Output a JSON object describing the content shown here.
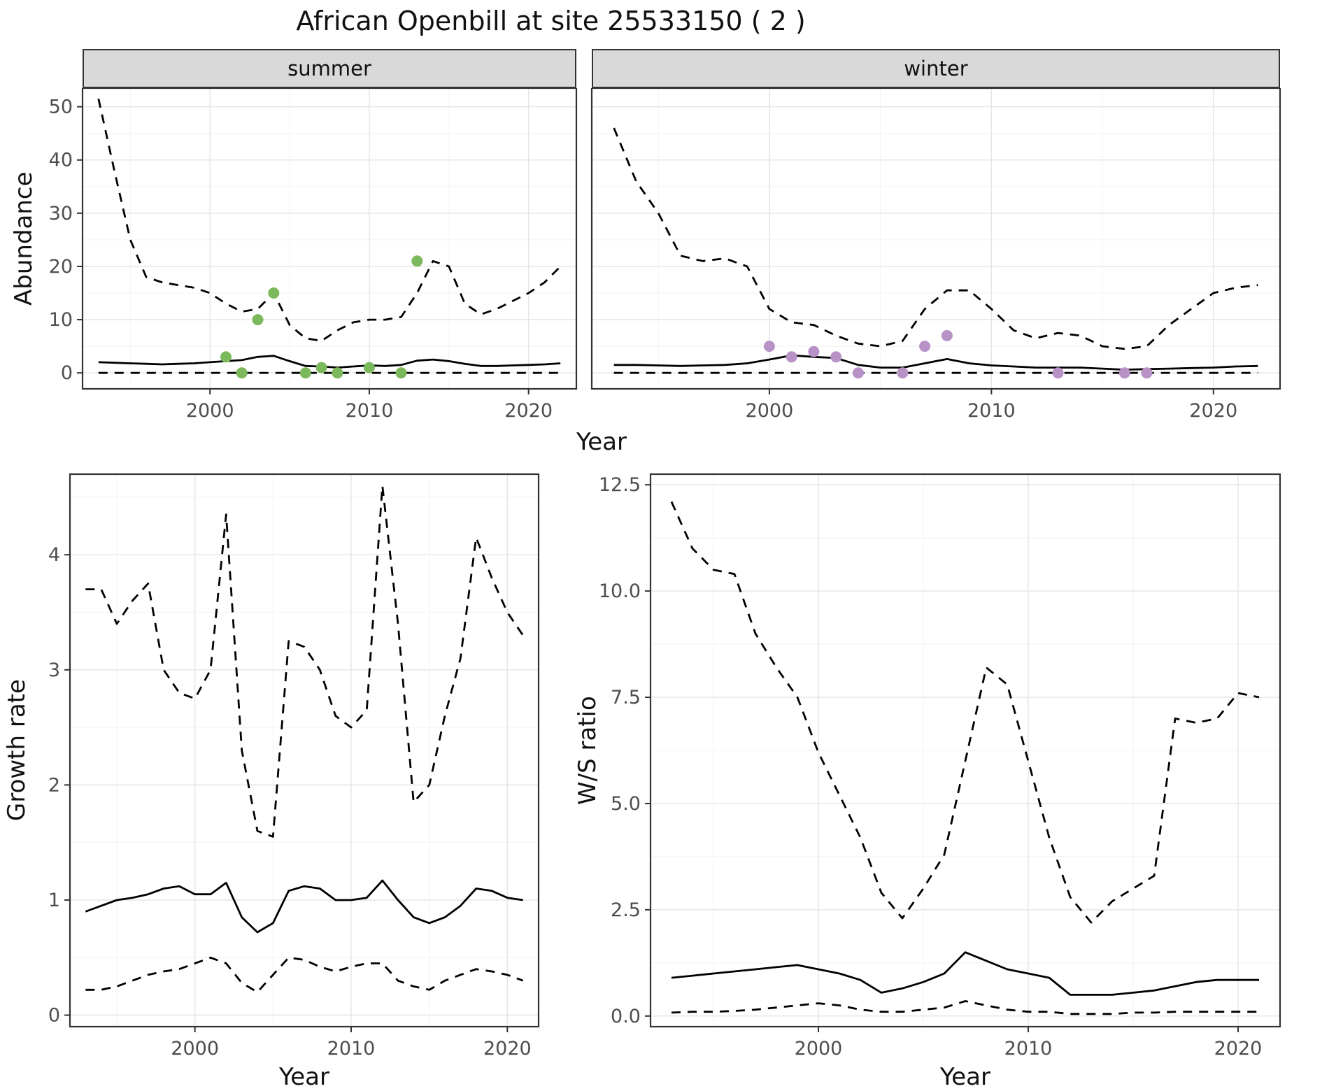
{
  "title": "African Openbill at site 25533150 ( 2 )",
  "colors": {
    "line": "#000000",
    "grid_major": "#e6e6e6",
    "grid_minor": "#f3f3f3",
    "panel_border": "#333333",
    "strip_bg": "#d9d9d9",
    "tick_text": "#4d4d4d",
    "summer_points": "#7cb85c",
    "winter_points": "#b892c7"
  },
  "chart_data": [
    {
      "id": "abundance_summer",
      "type": "line",
      "facet": "summer",
      "xlabel": "Year",
      "ylabel": "Abundance",
      "xlim": [
        1992,
        2023
      ],
      "ylim": [
        -3,
        53.5
      ],
      "xticks": [
        2000,
        2010,
        2020
      ],
      "xtick_labels": [
        "2000",
        "2010",
        "2020"
      ],
      "yticks": [
        0,
        10,
        20,
        30,
        40,
        50
      ],
      "ytick_labels": [
        "0",
        "10",
        "20",
        "30",
        "40",
        "50"
      ],
      "series": [
        {
          "name": "upper-ci",
          "style": "dashed",
          "x": [
            1993,
            1994,
            1995,
            1996,
            1997,
            1998,
            1999,
            2000,
            2001,
            2002,
            2003,
            2004,
            2005,
            2006,
            2007,
            2008,
            2009,
            2010,
            2011,
            2012,
            2013,
            2014,
            2015,
            2016,
            2017,
            2018,
            2019,
            2020,
            2021,
            2022
          ],
          "y": [
            51.5,
            38,
            25,
            18,
            17,
            16.5,
            16,
            15,
            13,
            11.5,
            12,
            15,
            9,
            6.5,
            6,
            8,
            9.5,
            10,
            10,
            10.5,
            15,
            21,
            20,
            13,
            11,
            12,
            13.5,
            15,
            17,
            20
          ]
        },
        {
          "name": "median",
          "style": "solid",
          "x": [
            1993,
            1994,
            1995,
            1996,
            1997,
            1998,
            1999,
            2000,
            2001,
            2002,
            2003,
            2004,
            2005,
            2006,
            2007,
            2008,
            2009,
            2010,
            2011,
            2012,
            2013,
            2014,
            2015,
            2016,
            2017,
            2018,
            2019,
            2020,
            2021,
            2022
          ],
          "y": [
            2,
            1.9,
            1.8,
            1.7,
            1.6,
            1.7,
            1.8,
            2,
            2.2,
            2.4,
            3,
            3.2,
            2.2,
            1.3,
            1.2,
            1,
            1.2,
            1.4,
            1.3,
            1.5,
            2.3,
            2.5,
            2.2,
            1.7,
            1.3,
            1.3,
            1.4,
            1.5,
            1.6,
            1.8
          ]
        },
        {
          "name": "lower-ci",
          "style": "dashed",
          "x": [
            1993,
            1994,
            1995,
            1996,
            1997,
            1998,
            1999,
            2000,
            2001,
            2002,
            2003,
            2004,
            2005,
            2006,
            2007,
            2008,
            2009,
            2010,
            2011,
            2012,
            2013,
            2014,
            2015,
            2016,
            2017,
            2018,
            2019,
            2020,
            2021,
            2022
          ],
          "y": [
            0,
            0,
            0,
            0,
            0,
            0,
            0,
            0,
            0,
            0,
            0,
            0,
            0,
            0,
            0,
            0,
            0,
            0,
            0,
            0,
            0,
            0,
            0,
            0,
            0,
            0,
            0,
            0,
            0,
            0
          ]
        }
      ],
      "points": {
        "name": "observed-summer-counts",
        "color": "#7cb85c",
        "x": [
          2001,
          2002,
          2003,
          2004,
          2006,
          2007,
          2008,
          2010,
          2012,
          2013
        ],
        "y": [
          3,
          0,
          10,
          15,
          0,
          1,
          0,
          1,
          0,
          21
        ]
      }
    },
    {
      "id": "abundance_winter",
      "type": "line",
      "facet": "winter",
      "xlabel": "Year",
      "ylabel": "Abundance",
      "xlim": [
        1992,
        2023
      ],
      "ylim": [
        -3,
        53.5
      ],
      "xticks": [
        2000,
        2010,
        2020
      ],
      "xtick_labels": [
        "2000",
        "2010",
        "2020"
      ],
      "yticks": [
        0,
        10,
        20,
        30,
        40,
        50
      ],
      "ytick_labels": [
        "0",
        "10",
        "20",
        "30",
        "40",
        "50"
      ],
      "series": [
        {
          "name": "upper-ci",
          "style": "dashed",
          "x": [
            1993,
            1994,
            1995,
            1996,
            1997,
            1998,
            1999,
            2000,
            2001,
            2002,
            2003,
            2004,
            2005,
            2006,
            2007,
            2008,
            2009,
            2010,
            2011,
            2012,
            2013,
            2014,
            2015,
            2016,
            2017,
            2018,
            2019,
            2020,
            2021,
            2022
          ],
          "y": [
            46,
            36,
            30,
            22,
            21,
            21.5,
            20,
            12,
            9.5,
            9,
            7,
            5.5,
            5,
            6,
            12,
            15.5,
            15.5,
            12,
            8,
            6.5,
            7.5,
            7,
            5,
            4.5,
            5,
            9,
            12,
            15,
            16,
            16.5
          ]
        },
        {
          "name": "median",
          "style": "solid",
          "x": [
            1993,
            1994,
            1995,
            1996,
            1997,
            1998,
            1999,
            2000,
            2001,
            2002,
            2003,
            2004,
            2005,
            2006,
            2007,
            2008,
            2009,
            2010,
            2011,
            2012,
            2013,
            2014,
            2015,
            2016,
            2017,
            2018,
            2019,
            2020,
            2021,
            2022
          ],
          "y": [
            1.5,
            1.5,
            1.4,
            1.3,
            1.4,
            1.5,
            1.8,
            2.5,
            3.3,
            3,
            2.8,
            1.5,
            1,
            1,
            1.8,
            2.6,
            1.8,
            1.4,
            1.2,
            1,
            1,
            1,
            0.8,
            0.6,
            0.7,
            0.8,
            0.9,
            1,
            1.2,
            1.3
          ]
        },
        {
          "name": "lower-ci",
          "style": "dashed",
          "x": [
            1993,
            1994,
            1995,
            1996,
            1997,
            1998,
            1999,
            2000,
            2001,
            2002,
            2003,
            2004,
            2005,
            2006,
            2007,
            2008,
            2009,
            2010,
            2011,
            2012,
            2013,
            2014,
            2015,
            2016,
            2017,
            2018,
            2019,
            2020,
            2021,
            2022
          ],
          "y": [
            0,
            0,
            0,
            0,
            0,
            0,
            0,
            0,
            0,
            0,
            0,
            0,
            0,
            0,
            0,
            0,
            0,
            0,
            0,
            0,
            0,
            0,
            0,
            0,
            0,
            0,
            0,
            0,
            0,
            0
          ]
        }
      ],
      "points": {
        "name": "observed-winter-counts",
        "color": "#b892c7",
        "x": [
          2000,
          2001,
          2002,
          2003,
          2004,
          2006,
          2007,
          2008,
          2013,
          2016,
          2017
        ],
        "y": [
          5,
          3,
          4,
          3,
          0,
          0,
          5,
          7,
          0,
          0,
          0
        ]
      }
    },
    {
      "id": "growth_rate",
      "type": "line",
      "facet": "",
      "xlabel": "Year",
      "ylabel": "Growth rate",
      "xlim": [
        1992,
        2022
      ],
      "ylim": [
        -0.1,
        4.7
      ],
      "xticks": [
        2000,
        2010,
        2020
      ],
      "xtick_labels": [
        "2000",
        "2010",
        "2020"
      ],
      "yticks": [
        0,
        1,
        2,
        3,
        4
      ],
      "ytick_labels": [
        "0",
        "1",
        "2",
        "3",
        "4"
      ],
      "series": [
        {
          "name": "upper-ci",
          "style": "dashed",
          "x": [
            1993,
            1994,
            1995,
            1996,
            1997,
            1998,
            1999,
            2000,
            2001,
            2002,
            2003,
            2004,
            2005,
            2006,
            2007,
            2008,
            2009,
            2010,
            2011,
            2012,
            2013,
            2014,
            2015,
            2016,
            2017,
            2018,
            2019,
            2020,
            2021
          ],
          "y": [
            3.7,
            3.7,
            3.4,
            3.6,
            3.75,
            3.0,
            2.8,
            2.75,
            3.0,
            4.35,
            2.3,
            1.6,
            1.55,
            3.25,
            3.2,
            3.0,
            2.6,
            2.5,
            2.65,
            4.6,
            3.4,
            1.85,
            2.0,
            2.6,
            3.1,
            4.15,
            3.8,
            3.5,
            3.3
          ]
        },
        {
          "name": "median",
          "style": "solid",
          "x": [
            1993,
            1994,
            1995,
            1996,
            1997,
            1998,
            1999,
            2000,
            2001,
            2002,
            2003,
            2004,
            2005,
            2006,
            2007,
            2008,
            2009,
            2010,
            2011,
            2012,
            2013,
            2014,
            2015,
            2016,
            2017,
            2018,
            2019,
            2020,
            2021
          ],
          "y": [
            0.9,
            0.95,
            1.0,
            1.02,
            1.05,
            1.1,
            1.12,
            1.05,
            1.05,
            1.15,
            0.85,
            0.72,
            0.8,
            1.08,
            1.12,
            1.1,
            1.0,
            1.0,
            1.02,
            1.17,
            1.0,
            0.85,
            0.8,
            0.85,
            0.95,
            1.1,
            1.08,
            1.02,
            1.0
          ]
        },
        {
          "name": "lower-ci",
          "style": "dashed",
          "x": [
            1993,
            1994,
            1995,
            1996,
            1997,
            1998,
            1999,
            2000,
            2001,
            2002,
            2003,
            2004,
            2005,
            2006,
            2007,
            2008,
            2009,
            2010,
            2011,
            2012,
            2013,
            2014,
            2015,
            2016,
            2017,
            2018,
            2019,
            2020,
            2021
          ],
          "y": [
            0.22,
            0.22,
            0.25,
            0.3,
            0.35,
            0.38,
            0.4,
            0.45,
            0.5,
            0.45,
            0.28,
            0.2,
            0.35,
            0.5,
            0.48,
            0.42,
            0.38,
            0.42,
            0.45,
            0.45,
            0.3,
            0.25,
            0.22,
            0.3,
            0.35,
            0.4,
            0.38,
            0.35,
            0.3
          ]
        }
      ],
      "points": null
    },
    {
      "id": "ws_ratio",
      "type": "line",
      "facet": "",
      "xlabel": "Year",
      "ylabel": "W/S ratio",
      "xlim": [
        1992,
        2022
      ],
      "ylim": [
        -0.25,
        12.75
      ],
      "xticks": [
        2000,
        2010,
        2020
      ],
      "xtick_labels": [
        "2000",
        "2010",
        "2020"
      ],
      "yticks": [
        0,
        2.5,
        5,
        7.5,
        10,
        12.5
      ],
      "ytick_labels": [
        "0.0",
        "2.5",
        "5.0",
        "7.5",
        "10.0",
        "12.5"
      ],
      "series": [
        {
          "name": "upper-ci",
          "style": "dashed",
          "x": [
            1993,
            1994,
            1995,
            1996,
            1997,
            1998,
            1999,
            2000,
            2001,
            2002,
            2003,
            2004,
            2005,
            2006,
            2007,
            2008,
            2009,
            2010,
            2011,
            2012,
            2013,
            2014,
            2015,
            2016,
            2017,
            2018,
            2019,
            2020,
            2021
          ],
          "y": [
            12.1,
            11.0,
            10.5,
            10.4,
            9.0,
            8.2,
            7.5,
            6.2,
            5.2,
            4.2,
            2.9,
            2.3,
            3.0,
            3.8,
            6.0,
            8.2,
            7.8,
            6.0,
            4.2,
            2.8,
            2.2,
            2.7,
            3.0,
            3.3,
            7.0,
            6.9,
            7.0,
            7.6,
            7.5
          ]
        },
        {
          "name": "median",
          "style": "solid",
          "x": [
            1993,
            1994,
            1995,
            1996,
            1997,
            1998,
            1999,
            2000,
            2001,
            2002,
            2003,
            2004,
            2005,
            2006,
            2007,
            2008,
            2009,
            2010,
            2011,
            2012,
            2013,
            2014,
            2015,
            2016,
            2017,
            2018,
            2019,
            2020,
            2021
          ],
          "y": [
            0.9,
            0.95,
            1.0,
            1.05,
            1.1,
            1.15,
            1.2,
            1.1,
            1.0,
            0.85,
            0.55,
            0.65,
            0.8,
            1.0,
            1.5,
            1.3,
            1.1,
            1.0,
            0.9,
            0.5,
            0.5,
            0.5,
            0.55,
            0.6,
            0.7,
            0.8,
            0.85,
            0.85,
            0.85
          ]
        },
        {
          "name": "lower-ci",
          "style": "dashed",
          "x": [
            1993,
            1994,
            1995,
            1996,
            1997,
            1998,
            1999,
            2000,
            2001,
            2002,
            2003,
            2004,
            2005,
            2006,
            2007,
            2008,
            2009,
            2010,
            2011,
            2012,
            2013,
            2014,
            2015,
            2016,
            2017,
            2018,
            2019,
            2020,
            2021
          ],
          "y": [
            0.08,
            0.1,
            0.1,
            0.12,
            0.15,
            0.2,
            0.25,
            0.3,
            0.25,
            0.15,
            0.1,
            0.1,
            0.15,
            0.2,
            0.35,
            0.25,
            0.15,
            0.1,
            0.1,
            0.05,
            0.05,
            0.05,
            0.08,
            0.08,
            0.1,
            0.1,
            0.1,
            0.1,
            0.1
          ]
        }
      ],
      "points": null
    }
  ]
}
